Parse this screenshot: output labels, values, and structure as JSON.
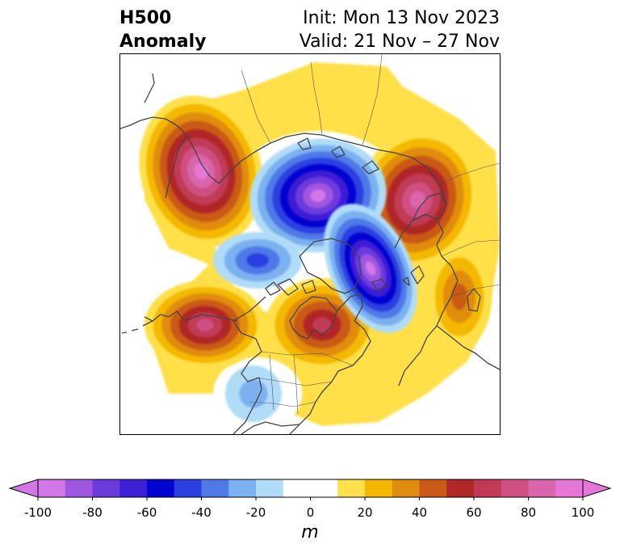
{
  "header": {
    "left_line1": "H500",
    "left_line2": "Anomaly",
    "init": "Init: Mon 13 Nov 2023",
    "valid": "Valid: 21 Nov – 27 Nov"
  },
  "colorbar": {
    "unit": "m",
    "extend": "both",
    "ticks": [
      "-100",
      "-80",
      "-60",
      "-40",
      "-20",
      "0",
      "20",
      "40",
      "60",
      "80",
      "100"
    ],
    "bins": [
      {
        "from": -100,
        "to": -90,
        "color": "#d377e6"
      },
      {
        "from": -90,
        "to": -80,
        "color": "#a057e0"
      },
      {
        "from": -80,
        "to": -70,
        "color": "#6c3bdb"
      },
      {
        "from": -70,
        "to": -60,
        "color": "#3d1fd6"
      },
      {
        "from": -60,
        "to": -50,
        "color": "#0404d0"
      },
      {
        "from": -50,
        "to": -40,
        "color": "#2c3fe0"
      },
      {
        "from": -40,
        "to": -30,
        "color": "#5079e8"
      },
      {
        "from": -30,
        "to": -20,
        "color": "#7bb1f0"
      },
      {
        "from": -20,
        "to": -10,
        "color": "#b0dcf8"
      },
      {
        "from": -10,
        "to": 10,
        "color": "#ffffff"
      },
      {
        "from": 10,
        "to": 20,
        "color": "#ffe04a"
      },
      {
        "from": 20,
        "to": 30,
        "color": "#f5b800"
      },
      {
        "from": 30,
        "to": 40,
        "color": "#e08c10"
      },
      {
        "from": 40,
        "to": 50,
        "color": "#c95a18"
      },
      {
        "from": 50,
        "to": 60,
        "color": "#b02828"
      },
      {
        "from": 60,
        "to": 70,
        "color": "#c03a55"
      },
      {
        "from": 70,
        "to": 80,
        "color": "#cf4f82"
      },
      {
        "from": 80,
        "to": 90,
        "color": "#d966aa"
      },
      {
        "from": 90,
        "to": 100,
        "color": "#e677d6"
      }
    ],
    "under_color": "#d377e6",
    "over_color": "#e677d6"
  },
  "map": {
    "projection": "north-polar-stereographic",
    "coastline_color": "#444444",
    "anomaly_features": [
      {
        "name": "alaska-bering-ridge",
        "sign": "positive",
        "peak_m": 90
      },
      {
        "name": "scandinavia-west-russia-ridge",
        "sign": "positive",
        "peak_m": 85
      },
      {
        "name": "north-pacific-ridge",
        "sign": "positive",
        "peak_m": 70
      },
      {
        "name": "great-lakes-ridge",
        "sign": "positive",
        "peak_m": 65
      },
      {
        "name": "central-siberia-ridge",
        "sign": "positive",
        "peak_m": 45
      },
      {
        "name": "arctic-trough",
        "sign": "negative",
        "peak_m": -95
      },
      {
        "name": "north-atlantic-trough",
        "sign": "negative",
        "peak_m": -90
      },
      {
        "name": "east-siberian-sea-trough",
        "sign": "negative",
        "peak_m": -45
      },
      {
        "name": "us-southwest-trough",
        "sign": "negative",
        "peak_m": -20
      }
    ]
  }
}
